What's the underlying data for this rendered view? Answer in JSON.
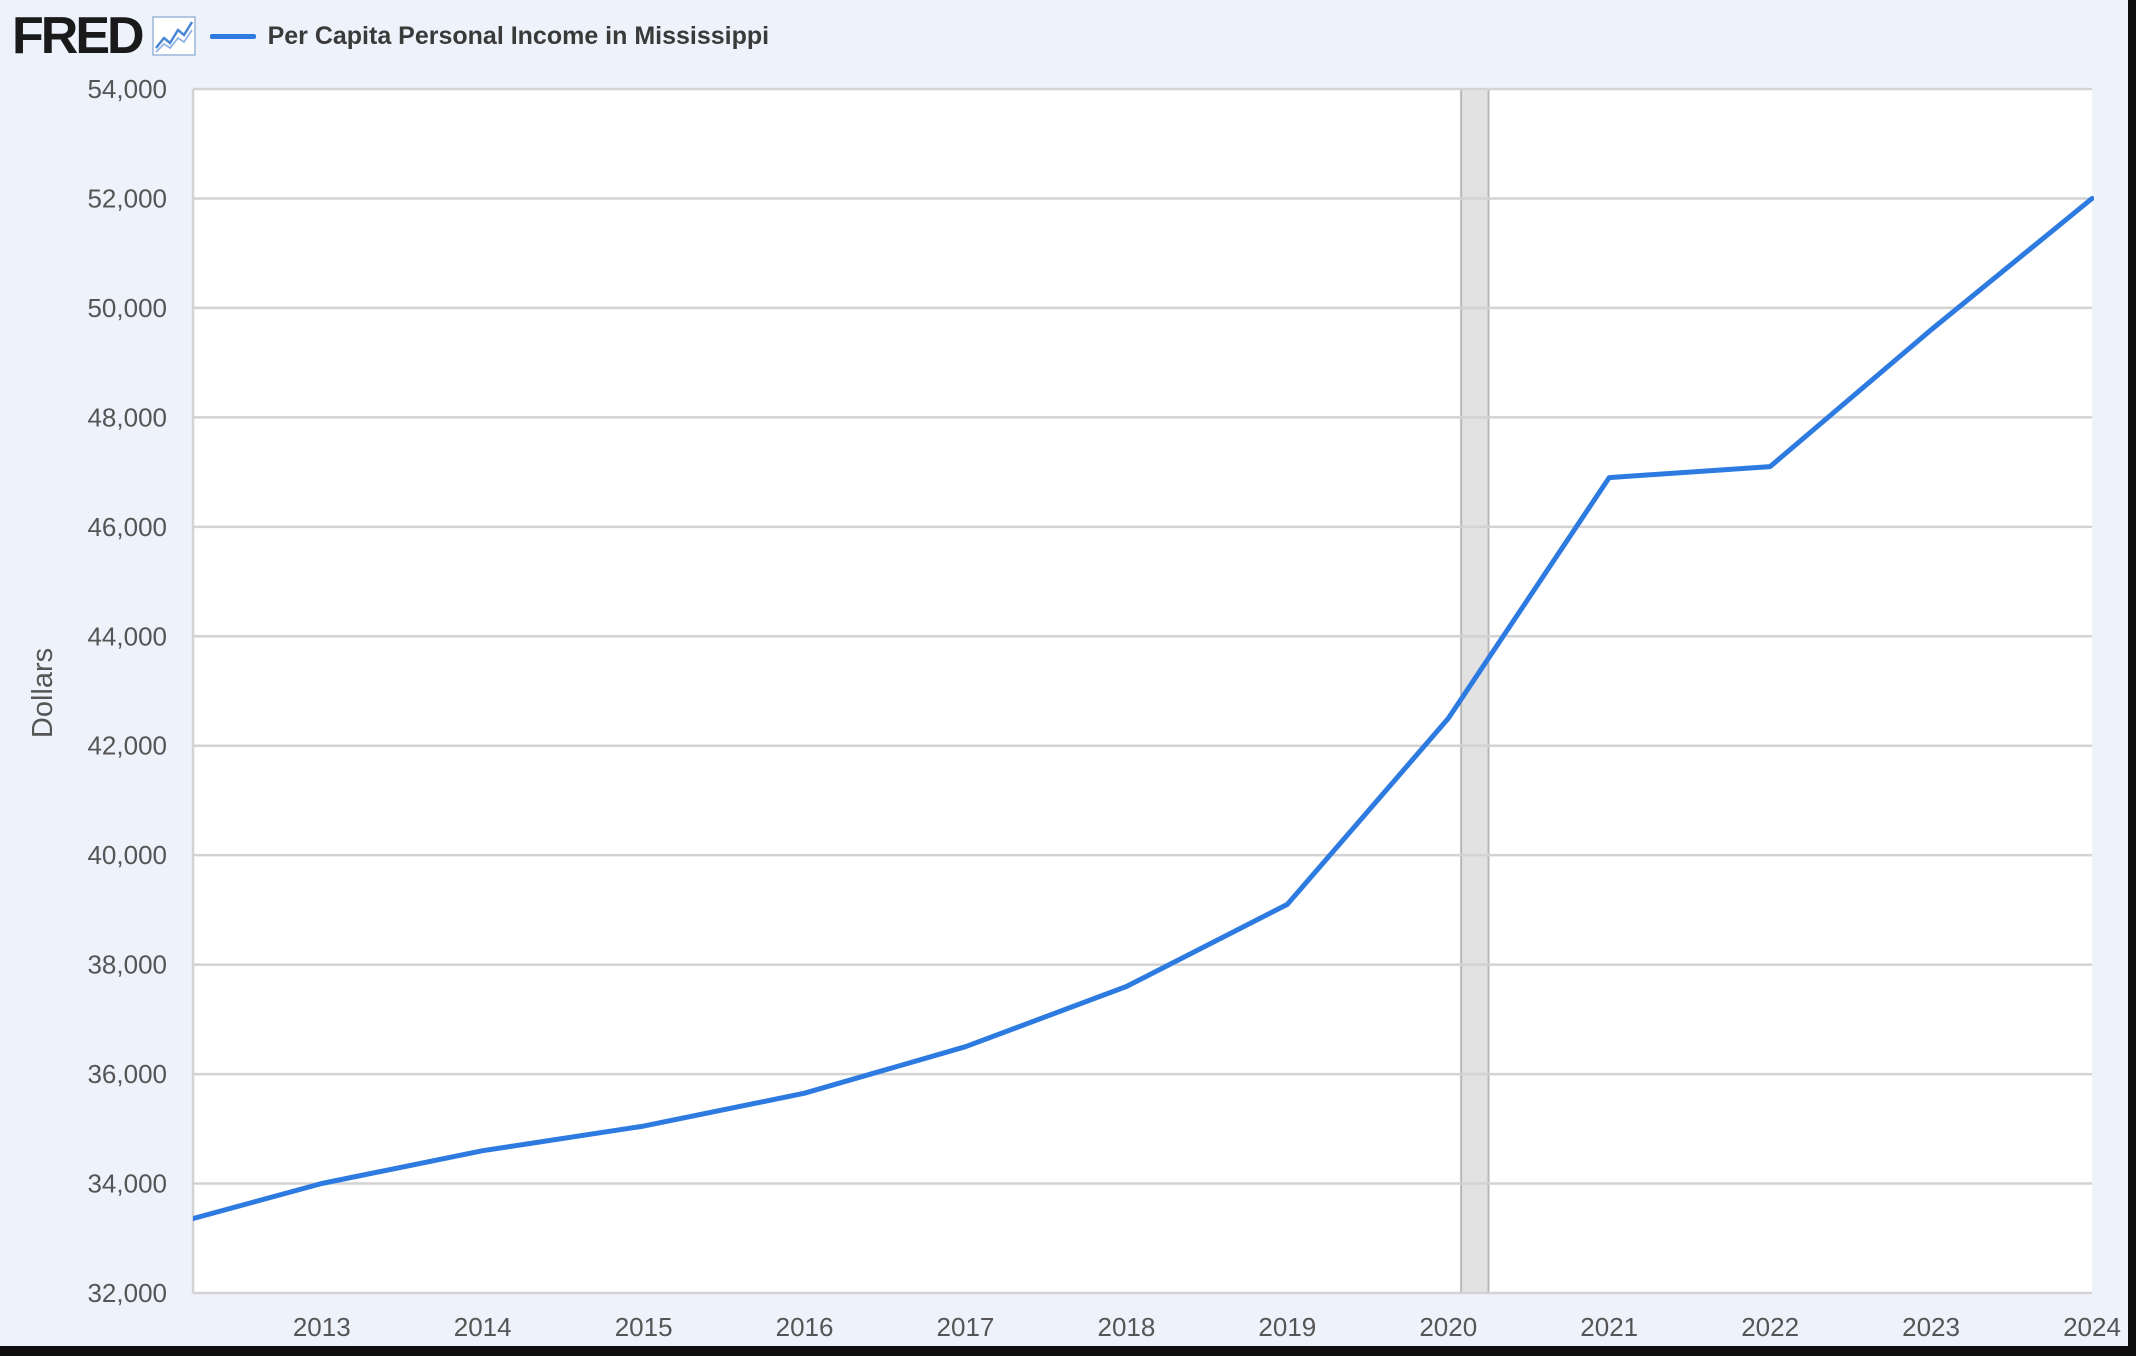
{
  "header": {
    "logo_text": "FRED",
    "logo_icon": "line-chart-icon"
  },
  "colors": {
    "series": "#2d7be0",
    "grid": "#d3d3d3",
    "recession": "#e2e2e2",
    "background": "#eef3fb"
  },
  "chart_data": {
    "type": "line",
    "title": "",
    "xlabel": "",
    "ylabel": "Dollars",
    "xlim": [
      2012.2,
      2024.0
    ],
    "ylim": [
      32000,
      54000
    ],
    "yticks": [
      32000,
      34000,
      36000,
      38000,
      40000,
      42000,
      44000,
      46000,
      48000,
      50000,
      52000,
      54000
    ],
    "ytick_labels": [
      "32,000",
      "34,000",
      "36,000",
      "38,000",
      "40,000",
      "42,000",
      "44,000",
      "46,000",
      "48,000",
      "50,000",
      "52,000",
      "54,000"
    ],
    "xticks": [
      2013,
      2014,
      2015,
      2016,
      2017,
      2018,
      2019,
      2020,
      2021,
      2022,
      2023,
      2024
    ],
    "xtick_labels": [
      "2013",
      "2014",
      "2015",
      "2016",
      "2017",
      "2018",
      "2019",
      "2020",
      "2021",
      "2022",
      "2023",
      "2024"
    ],
    "grid": true,
    "legend_position": "top-left",
    "recession_band": [
      2020.08,
      2020.25
    ],
    "series": [
      {
        "name": "Per Capita Personal Income in Mississippi",
        "x": [
          2012.0,
          2013.0,
          2014.0,
          2015.0,
          2016.0,
          2017.0,
          2018.0,
          2019.0,
          2020.0,
          2021.0,
          2022.0,
          2023.0,
          2024.0
        ],
        "values": [
          33200,
          34000,
          34600,
          35050,
          35650,
          36500,
          37600,
          39100,
          42500,
          46900,
          47100,
          49600,
          52000
        ]
      }
    ]
  }
}
